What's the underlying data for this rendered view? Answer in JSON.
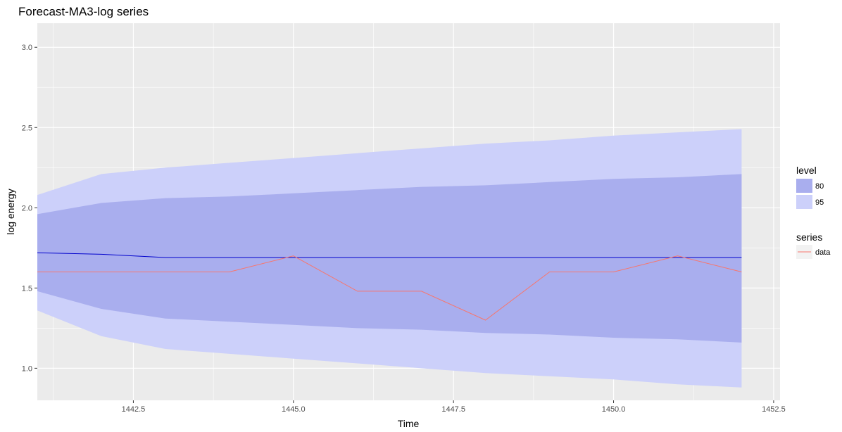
{
  "chart_data": {
    "type": "area",
    "title": "Forecast-MA3-log series",
    "xlabel": "Time",
    "ylabel": "log energy",
    "xlim": [
      1441,
      1452.6
    ],
    "ylim": [
      0.8,
      3.15
    ],
    "x_ticks": [
      1442.5,
      1445.0,
      1447.5,
      1450.0,
      1452.5
    ],
    "x_tick_labels": [
      "1442.5",
      "1445.0",
      "1447.5",
      "1450.0",
      "1452.5"
    ],
    "y_ticks": [
      1.0,
      1.5,
      2.0,
      2.5,
      3.0
    ],
    "y_tick_labels": [
      "1.0",
      "1.5",
      "2.0",
      "2.5",
      "3.0"
    ],
    "grid": true,
    "background_color": "#ebebeb",
    "grid_color": "#ffffff",
    "x": [
      1441,
      1442,
      1443,
      1444,
      1445,
      1446,
      1447,
      1448,
      1449,
      1450,
      1451,
      1452
    ],
    "bands": [
      {
        "level": "95",
        "color": "#ccd0fa",
        "lower": [
          1.36,
          1.2,
          1.12,
          1.09,
          1.06,
          1.03,
          1.0,
          0.97,
          0.95,
          0.93,
          0.9,
          0.88
        ],
        "upper": [
          2.08,
          2.21,
          2.25,
          2.28,
          2.31,
          2.34,
          2.37,
          2.4,
          2.42,
          2.45,
          2.47,
          2.49
        ]
      },
      {
        "level": "80",
        "color": "#a9aeee",
        "lower": [
          1.48,
          1.37,
          1.31,
          1.29,
          1.27,
          1.25,
          1.24,
          1.22,
          1.21,
          1.19,
          1.18,
          1.16
        ],
        "upper": [
          1.96,
          2.03,
          2.06,
          2.07,
          2.09,
          2.11,
          2.13,
          2.14,
          2.16,
          2.18,
          2.19,
          2.21
        ]
      }
    ],
    "series": [
      {
        "name": "data",
        "color": "#f8766d",
        "values": [
          1.6,
          1.6,
          1.6,
          1.6,
          1.7,
          1.48,
          1.48,
          1.3,
          1.6,
          1.6,
          1.7,
          1.6
        ]
      }
    ],
    "forecast_line": {
      "color": "#0000cc",
      "values": [
        1.72,
        1.71,
        1.69,
        1.69,
        1.69,
        1.69,
        1.69,
        1.69,
        1.69,
        1.69,
        1.69,
        1.69
      ]
    },
    "legend": {
      "placement": "right",
      "level_title": "level",
      "level_entries": [
        {
          "label": "80",
          "color": "#a9aeee"
        },
        {
          "label": "95",
          "color": "#ccd0fa"
        }
      ],
      "series_title": "series",
      "series_entries": [
        {
          "label": "data",
          "color": "#f8766d"
        }
      ]
    }
  }
}
